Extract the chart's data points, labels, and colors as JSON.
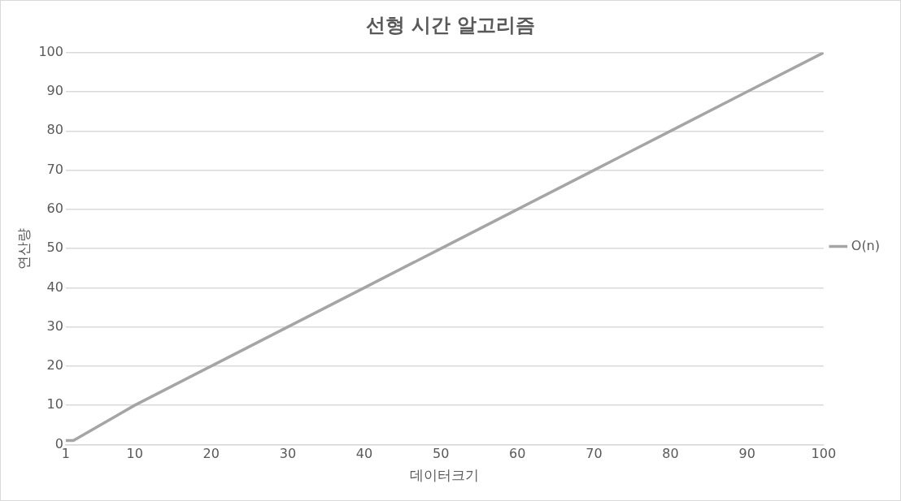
{
  "chart_data": {
    "type": "line",
    "title": "선형 시간 알고리즘",
    "xlabel": "데이터크기",
    "ylabel": "연산량",
    "x": [
      1,
      2,
      10,
      20,
      30,
      40,
      50,
      60,
      70,
      80,
      90,
      100
    ],
    "series": [
      {
        "name": "O(n)",
        "color": "#a5a5a5",
        "values": [
          1,
          1,
          10,
          20,
          30,
          40,
          50,
          60,
          70,
          80,
          90,
          100
        ]
      }
    ],
    "xlim": [
      1,
      100
    ],
    "xticks": [
      1,
      10,
      20,
      30,
      40,
      50,
      60,
      70,
      80,
      90,
      100
    ],
    "ylim": [
      0,
      100
    ],
    "yticks": [
      0,
      10,
      20,
      30,
      40,
      50,
      60,
      70,
      80,
      90,
      100
    ],
    "grid": "y",
    "legend": "right",
    "marker": "none",
    "line_style": "solid"
  }
}
